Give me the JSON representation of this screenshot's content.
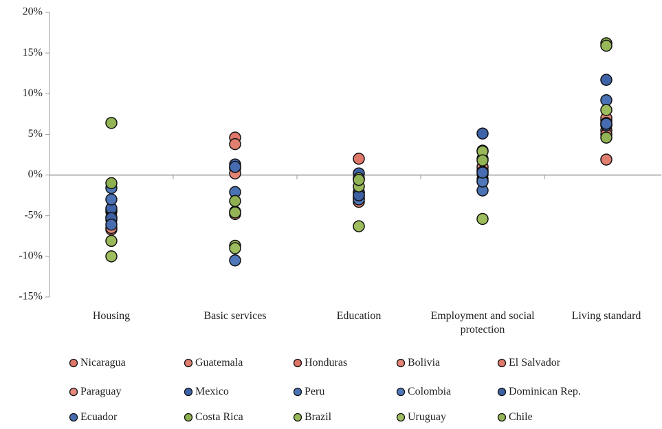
{
  "chart_data": {
    "type": "dot",
    "categories": [
      "Housing",
      "Basic services",
      "Education",
      "Employment and social protection",
      "Living standard"
    ],
    "ylim": [
      -15,
      20
    ],
    "yticks": [
      {
        "value": -15,
        "label": "-15%"
      },
      {
        "value": -10,
        "label": "-10%"
      },
      {
        "value": -5,
        "label": "-5%"
      },
      {
        "value": 0,
        "label": "0%"
      },
      {
        "value": 5,
        "label": "5%"
      },
      {
        "value": 10,
        "label": "10%"
      },
      {
        "value": 15,
        "label": "15%"
      },
      {
        "value": 20,
        "label": "20%"
      }
    ],
    "series": [
      {
        "name": "Nicaragua",
        "color": "#e0786a",
        "values": [
          -4.5,
          4.6,
          2.0,
          0.6,
          6.7
        ]
      },
      {
        "name": "Guatemala",
        "color": "#e07f70",
        "values": [
          -6.7,
          3.8,
          -3.3,
          -0.5,
          1.9
        ]
      },
      {
        "name": "Honduras",
        "color": "#dd7466",
        "values": [
          -5.2,
          0.8,
          -2.5,
          0.1,
          6.2
        ]
      },
      {
        "name": "Bolivia",
        "color": "#e28476",
        "values": [
          -4.3,
          0.2,
          -2.9,
          1.0,
          5.5
        ]
      },
      {
        "name": "El Salvador",
        "color": "#df7a6c",
        "values": [
          -5.5,
          -4.8,
          -2.1,
          0.4,
          5.0
        ]
      },
      {
        "name": "Paraguay",
        "color": "#e3887a",
        "values": [
          -6.5,
          1.0,
          -2.7,
          -0.8,
          7.0
        ]
      },
      {
        "name": "Mexico",
        "color": "#3f63a8",
        "values": [
          -4.1,
          1.3,
          0.2,
          5.1,
          11.7
        ]
      },
      {
        "name": "Peru",
        "color": "#4a72b5",
        "values": [
          -3.0,
          -2.1,
          -2.2,
          -1.9,
          9.2
        ]
      },
      {
        "name": "Colombia",
        "color": "#4f78ba",
        "values": [
          -1.6,
          -10.5,
          -3.0,
          -0.8,
          6.4
        ]
      },
      {
        "name": "Dominican Rep.",
        "color": "#3d60a2",
        "values": [
          -5.3,
          -4.5,
          -2.5,
          2.0,
          6.1
        ]
      },
      {
        "name": "Ecuador",
        "color": "#476db0",
        "values": [
          -6.1,
          1.0,
          -0.5,
          0.3,
          6.3
        ]
      },
      {
        "name": "Costa Rica",
        "color": "#8fb050",
        "values": [
          -1.0,
          -3.2,
          -0.4,
          3.0,
          16.2
        ]
      },
      {
        "name": "Brazil",
        "color": "#98b85a",
        "values": [
          -8.1,
          -8.7,
          -1.4,
          2.9,
          15.9
        ]
      },
      {
        "name": "Uruguay",
        "color": "#9dbd5e",
        "values": [
          -10.0,
          -9.0,
          -6.3,
          -5.4,
          8.0
        ]
      },
      {
        "name": "Chile",
        "color": "#93b456",
        "values": [
          6.4,
          -4.6,
          -0.6,
          1.8,
          4.6
        ]
      }
    ]
  }
}
